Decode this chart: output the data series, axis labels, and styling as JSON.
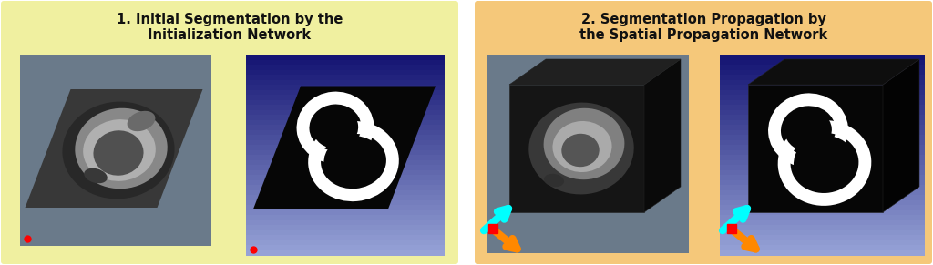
{
  "panel1_bg": "#f0f0a0",
  "panel2_bg": "#f5c87a",
  "panel1_title": "1. Initial Segmentation by the\nInitialization Network",
  "panel2_title": "2. Segmentation Propagation by\nthe Spatial Propagation Network",
  "title_fontsize": 10.5,
  "title_fontweight": "bold",
  "title_color": "#111111",
  "fig_width": 10.24,
  "fig_height": 2.91,
  "img1_bg": "#6a7a8a",
  "img2_bg_top": "#1a1a70",
  "img2_bg_bot": "#8090b8",
  "box_bg": "#6a7a8a",
  "box_face": "#0a0a0a",
  "box_right": "#050505",
  "box_top": "#181818"
}
